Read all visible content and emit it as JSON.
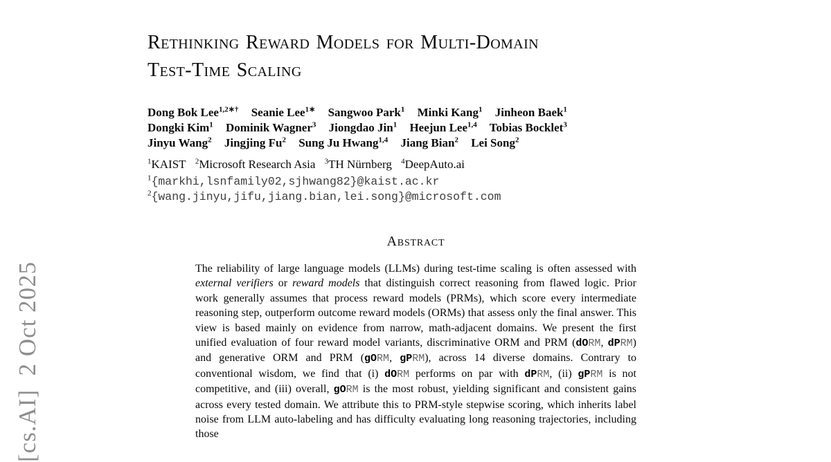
{
  "colors": {
    "text": "#0a0a0a",
    "watermark_gray": "#8e8e8e",
    "email_mono": "#3d3d3d",
    "rm_suffix_gray": "#666666"
  },
  "watermark": {
    "text": "[cs.AI]  2 Oct 2025"
  },
  "title": {
    "line1": "Rethinking Reward Models for Multi-Domain",
    "line2": "Test-Time Scaling"
  },
  "authors": {
    "rows": [
      [
        {
          "name": "Dong Bok Lee",
          "sup": "1,2∗†"
        },
        {
          "name": "Seanie Lee",
          "sup": "1∗"
        },
        {
          "name": "Sangwoo Park",
          "sup": "1"
        },
        {
          "name": "Minki Kang",
          "sup": "1"
        },
        {
          "name": "Jinheon Baek",
          "sup": "1"
        }
      ],
      [
        {
          "name": "Dongki Kim",
          "sup": "1"
        },
        {
          "name": "Dominik Wagner",
          "sup": "3"
        },
        {
          "name": "Jiongdao Jin",
          "sup": "1"
        },
        {
          "name": "Heejun Lee",
          "sup": "1,4"
        },
        {
          "name": "Tobias Bocklet",
          "sup": "3"
        }
      ],
      [
        {
          "name": "Jinyu Wang",
          "sup": "2"
        },
        {
          "name": "Jingjing Fu",
          "sup": "2"
        },
        {
          "name": "Sung Ju Hwang",
          "sup": "1,4"
        },
        {
          "name": "Jiang Bian",
          "sup": "2"
        },
        {
          "name": "Lei Song",
          "sup": "2"
        }
      ]
    ]
  },
  "affiliations": [
    {
      "sup": "1",
      "label": "KAIST"
    },
    {
      "sup": "2",
      "label": "Microsoft Research Asia"
    },
    {
      "sup": "3",
      "label": "TH Nürnberg"
    },
    {
      "sup": "4",
      "label": "DeepAuto.ai"
    }
  ],
  "emails": [
    {
      "sup": "1",
      "address": "{markhi,lsnfamily02,sjhwang82}@kaist.ac.kr"
    },
    {
      "sup": "2",
      "address": "{wang.jinyu,jifu,jiang.bian,lei.song}@microsoft.com"
    }
  ],
  "abstract": {
    "heading": "Abstract",
    "segments": [
      {
        "s": "n",
        "t": "The reliability of large language models (LLMs) during test-time scaling is often assessed with "
      },
      {
        "s": "i",
        "t": "external verifiers"
      },
      {
        "s": "n",
        "t": " or "
      },
      {
        "s": "i",
        "t": "reward models"
      },
      {
        "s": "n",
        "t": " that distinguish correct reasoning from flawed logic. Prior work generally assumes that process reward models (PRMs), which score every intermediate reasoning step, outperform outcome reward models (ORMs) that assess only the final answer. This view is based mainly on evidence from narrow, math-adjacent domains. We present the first unified evaluation of four reward model variants, discriminative ORM and PRM ("
      },
      {
        "s": "b",
        "t": "dO"
      },
      {
        "s": "m",
        "t": "RM"
      },
      {
        "s": "n",
        "t": ", "
      },
      {
        "s": "b",
        "t": "dP"
      },
      {
        "s": "m",
        "t": "RM"
      },
      {
        "s": "n",
        "t": ") and generative ORM and PRM ("
      },
      {
        "s": "b",
        "t": "gO"
      },
      {
        "s": "m",
        "t": "RM"
      },
      {
        "s": "n",
        "t": ", "
      },
      {
        "s": "b",
        "t": "gP"
      },
      {
        "s": "m",
        "t": "RM"
      },
      {
        "s": "n",
        "t": "), across 14 diverse domains. Contrary to conventional wisdom, we find that (i) "
      },
      {
        "s": "b",
        "t": "dO"
      },
      {
        "s": "m",
        "t": "RM"
      },
      {
        "s": "n",
        "t": " performs on par with "
      },
      {
        "s": "b",
        "t": "dP"
      },
      {
        "s": "m",
        "t": "RM"
      },
      {
        "s": "n",
        "t": ", (ii) "
      },
      {
        "s": "b",
        "t": "gP"
      },
      {
        "s": "m",
        "t": "RM"
      },
      {
        "s": "n",
        "t": " is not competitive, and (iii) overall, "
      },
      {
        "s": "b",
        "t": "gO"
      },
      {
        "s": "m",
        "t": "RM"
      },
      {
        "s": "n",
        "t": " is the most robust, yielding significant and consistent gains across every tested domain. We attribute this to PRM-style stepwise scoring, which inherits label noise from LLM auto-labeling and has difficulty evaluating long reasoning trajectories, including those"
      }
    ]
  }
}
